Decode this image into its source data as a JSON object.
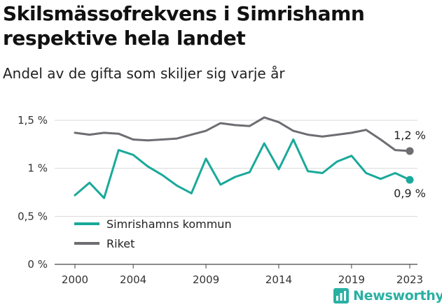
{
  "chart_data": {
    "type": "line",
    "title": "Skilsmässofrekvens i Simrishamn respektive hela landet",
    "subtitle": "Andel av de gifta som skiljer sig varje år",
    "x": [
      2000,
      2001,
      2002,
      2003,
      2004,
      2005,
      2006,
      2007,
      2008,
      2009,
      2010,
      2011,
      2012,
      2013,
      2014,
      2015,
      2016,
      2017,
      2018,
      2019,
      2020,
      2021,
      2022,
      2023
    ],
    "x_ticks": [
      "2000",
      "2004",
      "2009",
      "2014",
      "2019",
      "2023"
    ],
    "x_tick_values": [
      2000,
      2004,
      2009,
      2014,
      2019,
      2023
    ],
    "y_ticks": [
      "0 %",
      "0,5 %",
      "1 %",
      "1,5 %"
    ],
    "y_tick_values": [
      0,
      0.5,
      1,
      1.5
    ],
    "ylim": [
      0,
      1.5
    ],
    "xlim": [
      2000,
      2023
    ],
    "grid": "horizontal",
    "legend_position": "bottom-left",
    "series": [
      {
        "name": "Simrishamns kommun",
        "color": "#1aa99a",
        "values": [
          0.72,
          0.85,
          0.69,
          1.19,
          1.14,
          1.02,
          0.93,
          0.82,
          0.74,
          1.1,
          0.83,
          0.91,
          0.96,
          1.26,
          0.99,
          1.3,
          0.97,
          0.95,
          1.07,
          1.13,
          0.95,
          0.89,
          0.95,
          0.88
        ],
        "end_label": "0,9 %"
      },
      {
        "name": "Riket",
        "color": "#6d6d72",
        "values": [
          1.37,
          1.35,
          1.37,
          1.36,
          1.3,
          1.29,
          1.3,
          1.31,
          1.35,
          1.39,
          1.47,
          1.45,
          1.44,
          1.53,
          1.48,
          1.39,
          1.35,
          1.33,
          1.35,
          1.37,
          1.4,
          1.3,
          1.19,
          1.18
        ],
        "end_label": "1,2 %"
      }
    ]
  },
  "brand": {
    "name": "Newsworthy",
    "color": "#2ab0a2"
  }
}
